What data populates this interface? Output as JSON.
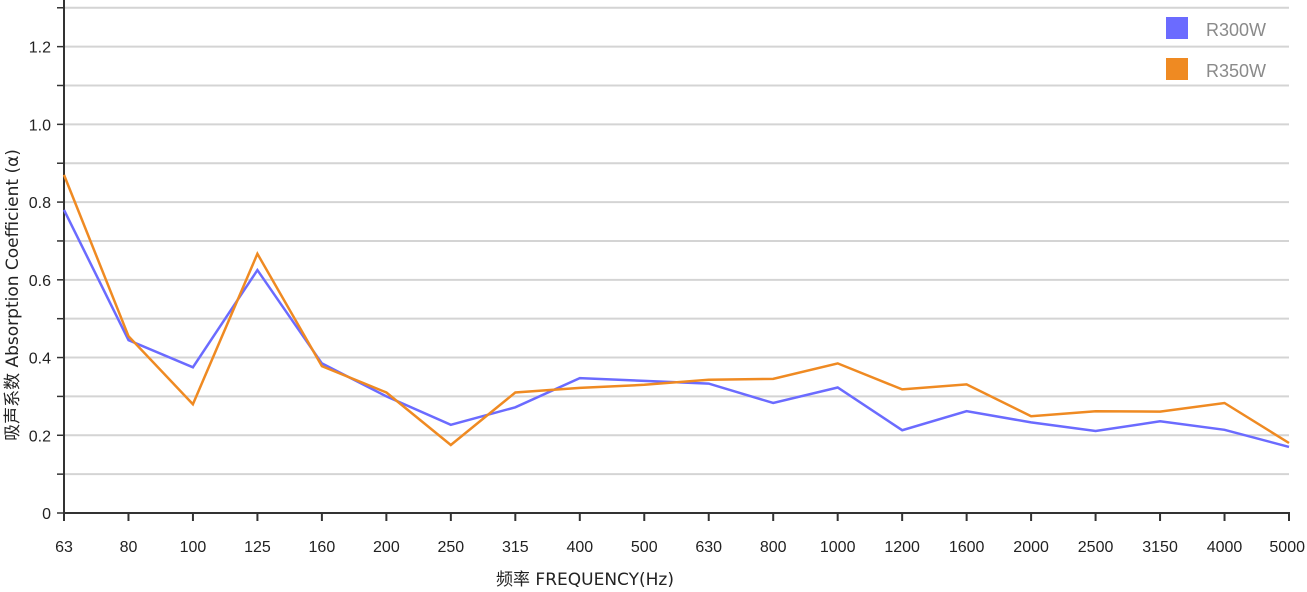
{
  "chart_data": {
    "type": "line",
    "xlabel": "频率 FREQUENCY(Hz)",
    "ylabel": "吸声系数 Absorption Coefficient (α)",
    "categories": [
      "63",
      "80",
      "100",
      "125",
      "160",
      "200",
      "250",
      "315",
      "400",
      "500",
      "630",
      "800",
      "1000",
      "1200",
      "1600",
      "2000",
      "2500",
      "3150",
      "4000",
      "5000"
    ],
    "y_tick_labels": [
      "0",
      "0.2",
      "0.4",
      "0.6",
      "0.8",
      "1.0",
      "1.2"
    ],
    "y_tick_values": [
      0,
      0.2,
      0.4,
      0.6,
      0.8,
      1.0,
      1.2
    ],
    "ylim": [
      0,
      1.32
    ],
    "grid": true,
    "legend_position": "top-right",
    "series": [
      {
        "name": "R300W",
        "color": "#6b6bff",
        "values": [
          0.78,
          0.445,
          0.375,
          0.625,
          0.385,
          0.3,
          0.227,
          0.272,
          0.347,
          0.34,
          0.333,
          0.283,
          0.323,
          0.213,
          0.262,
          0.233,
          0.211,
          0.236,
          0.214,
          0.17
        ]
      },
      {
        "name": "R350W",
        "color": "#ef8a22",
        "values": [
          0.87,
          0.455,
          0.28,
          0.667,
          0.378,
          0.31,
          0.175,
          0.31,
          0.322,
          0.33,
          0.343,
          0.345,
          0.385,
          0.318,
          0.331,
          0.249,
          0.262,
          0.261,
          0.283,
          0.18
        ]
      }
    ]
  }
}
